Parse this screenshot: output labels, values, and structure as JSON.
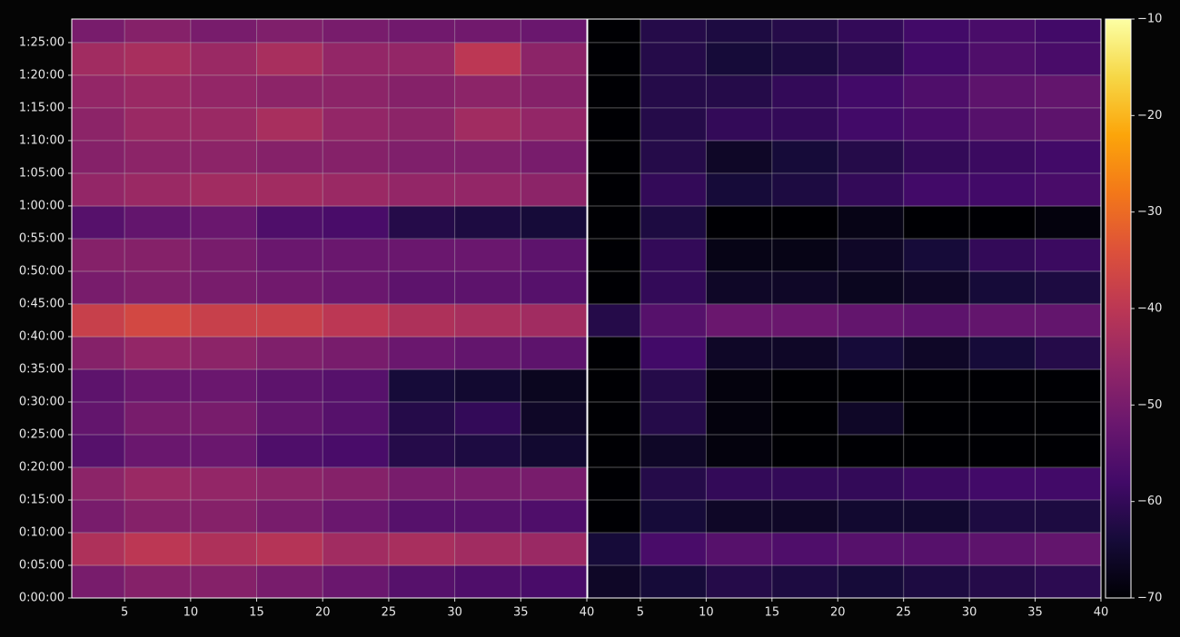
{
  "chart_data": {
    "type": "heatmap",
    "ylim": [
      0,
      5316
    ],
    "yticks": [
      {
        "value": 0,
        "label": "0:00:00"
      },
      {
        "value": 300,
        "label": "0:05:00"
      },
      {
        "value": 600,
        "label": "0:10:00"
      },
      {
        "value": 900,
        "label": "0:15:00"
      },
      {
        "value": 1200,
        "label": "0:20:00"
      },
      {
        "value": 1500,
        "label": "0:25:00"
      },
      {
        "value": 1800,
        "label": "0:30:00"
      },
      {
        "value": 2100,
        "label": "0:35:00"
      },
      {
        "value": 2400,
        "label": "0:40:00"
      },
      {
        "value": 2700,
        "label": "0:45:00"
      },
      {
        "value": 3000,
        "label": "0:50:00"
      },
      {
        "value": 3300,
        "label": "0:55:00"
      },
      {
        "value": 3600,
        "label": "1:00:00"
      },
      {
        "value": 3900,
        "label": "1:05:00"
      },
      {
        "value": 4200,
        "label": "1:10:00"
      },
      {
        "value": 4500,
        "label": "1:15:00"
      },
      {
        "value": 4800,
        "label": "1:20:00"
      },
      {
        "value": 5100,
        "label": "1:25:00"
      }
    ],
    "y_bins": [
      0,
      300,
      600,
      900,
      1200,
      1500,
      1800,
      2100,
      2400,
      2700,
      3000,
      3300,
      3600,
      3900,
      4200,
      4500,
      4800,
      5100,
      5316
    ],
    "grid": true,
    "colorbar": {
      "lim": [
        -70,
        -10
      ],
      "ticks": [
        {
          "value": -10,
          "label": "−10"
        },
        {
          "value": -20,
          "label": "−20"
        },
        {
          "value": -30,
          "label": "−30"
        },
        {
          "value": -40,
          "label": "−40"
        },
        {
          "value": -50,
          "label": "−50"
        },
        {
          "value": -60,
          "label": "−60"
        },
        {
          "value": -70,
          "label": "−70"
        }
      ]
    },
    "panels": [
      {
        "xlim": [
          1,
          40
        ],
        "xticks": [
          5,
          10,
          15,
          20,
          25,
          30,
          35,
          40
        ],
        "x_bins": [
          1,
          5,
          10,
          15,
          20,
          25,
          30,
          35,
          40
        ],
        "z": [
          [
            -50,
            -48,
            -48,
            -50,
            -52,
            -55,
            -56,
            -57
          ],
          [
            -42,
            -40,
            -42,
            -41,
            -44,
            -43,
            -44,
            -45
          ],
          [
            -50,
            -48,
            -48,
            -50,
            -52,
            -55,
            -55,
            -56
          ],
          [
            -47,
            -45,
            -46,
            -47,
            -48,
            -50,
            -50,
            -50
          ],
          [
            -55,
            -52,
            -52,
            -56,
            -57,
            -62,
            -63,
            -65
          ],
          [
            -53,
            -50,
            -50,
            -53,
            -55,
            -62,
            -60,
            -66
          ],
          [
            -54,
            -52,
            -52,
            -54,
            -55,
            -64,
            -65,
            -67
          ],
          [
            -48,
            -46,
            -47,
            -49,
            -50,
            -52,
            -53,
            -54
          ],
          [
            -38,
            -36,
            -38,
            -38,
            -40,
            -42,
            -43,
            -44
          ],
          [
            -50,
            -49,
            -50,
            -51,
            -52,
            -54,
            -54,
            -55
          ],
          [
            -48,
            -48,
            -50,
            -52,
            -52,
            -52,
            -52,
            -54
          ],
          [
            -55,
            -53,
            -52,
            -56,
            -57,
            -62,
            -63,
            -64
          ],
          [
            -46,
            -45,
            -44,
            -44,
            -45,
            -46,
            -46,
            -47
          ],
          [
            -48,
            -47,
            -47,
            -48,
            -48,
            -49,
            -49,
            -50
          ],
          [
            -47,
            -45,
            -45,
            -43,
            -46,
            -47,
            -44,
            -46
          ],
          [
            -46,
            -45,
            -46,
            -47,
            -47,
            -48,
            -47,
            -48
          ],
          [
            -44,
            -43,
            -45,
            -43,
            -46,
            -46,
            -40,
            -47
          ],
          [
            -50,
            -48,
            -50,
            -49,
            -50,
            -51,
            -51,
            -52
          ]
        ]
      },
      {
        "xlim": [
          1,
          40
        ],
        "xticks": [
          5,
          10,
          15,
          20,
          25,
          30,
          35,
          40
        ],
        "x_bins": [
          1,
          5,
          10,
          15,
          20,
          25,
          30,
          35,
          40
        ],
        "z": [
          [
            -66,
            -64,
            -62,
            -63,
            -64,
            -63,
            -62,
            -61
          ],
          [
            -64,
            -57,
            -55,
            -56,
            -55,
            -55,
            -54,
            -53
          ],
          [
            -70,
            -64,
            -66,
            -66,
            -65,
            -65,
            -63,
            -63
          ],
          [
            -70,
            -62,
            -60,
            -60,
            -60,
            -59,
            -58,
            -58
          ],
          [
            -70,
            -66,
            -69,
            -70,
            -70,
            -70,
            -70,
            -70
          ],
          [
            -70,
            -62,
            -69,
            -70,
            -66,
            -70,
            -70,
            -70
          ],
          [
            -70,
            -62,
            -69,
            -70,
            -70,
            -70,
            -70,
            -70
          ],
          [
            -70,
            -58,
            -66,
            -66,
            -64,
            -66,
            -64,
            -62
          ],
          [
            -62,
            -55,
            -52,
            -52,
            -53,
            -54,
            -53,
            -53
          ],
          [
            -70,
            -60,
            -66,
            -66,
            -67,
            -66,
            -64,
            -63
          ],
          [
            -70,
            -60,
            -68,
            -68,
            -66,
            -64,
            -60,
            -59
          ],
          [
            -70,
            -63,
            -70,
            -70,
            -68,
            -70,
            -70,
            -69
          ],
          [
            -70,
            -60,
            -64,
            -63,
            -60,
            -58,
            -58,
            -57
          ],
          [
            -70,
            -62,
            -66,
            -64,
            -62,
            -60,
            -59,
            -58
          ],
          [
            -70,
            -62,
            -60,
            -60,
            -58,
            -57,
            -55,
            -54
          ],
          [
            -70,
            -62,
            -62,
            -60,
            -58,
            -56,
            -54,
            -53
          ],
          [
            -70,
            -62,
            -64,
            -63,
            -61,
            -58,
            -56,
            -57
          ],
          [
            -70,
            -62,
            -63,
            -62,
            -60,
            -58,
            -57,
            -58
          ]
        ]
      }
    ]
  }
}
